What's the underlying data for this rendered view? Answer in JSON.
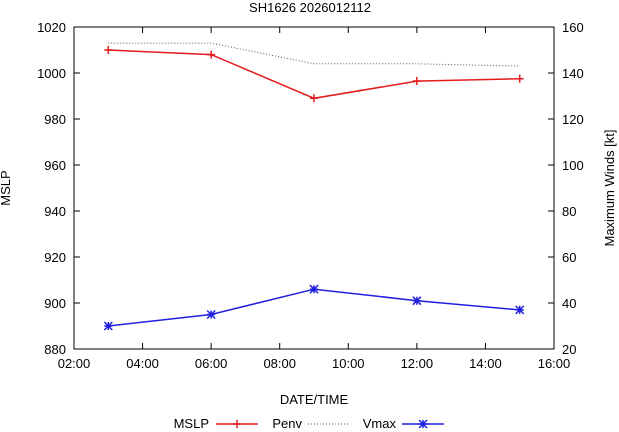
{
  "chart_data": {
    "type": "line",
    "title": "SH1626 2026012112",
    "xlabel": "DATE/TIME",
    "ylabel_left": "MSLP",
    "ylabel_right": "Maximum Winds [kt]",
    "x_ticks": [
      "02:00",
      "04:00",
      "06:00",
      "08:00",
      "10:00",
      "12:00",
      "14:00",
      "16:00"
    ],
    "x_range_hours": [
      2,
      16
    ],
    "y_left_ticks": [
      "880",
      "900",
      "920",
      "940",
      "960",
      "980",
      "1000",
      "1020"
    ],
    "y_left_range": [
      880,
      1020
    ],
    "y_right_ticks": [
      "20",
      "40",
      "60",
      "80",
      "100",
      "120",
      "140",
      "160"
    ],
    "y_right_range": [
      20,
      160
    ],
    "grid": false,
    "legend_position": "bottom",
    "series": [
      {
        "name": "MSLP",
        "axis": "left",
        "color": "#e41a1c",
        "style": "solid",
        "marker": "plus",
        "x": [
          "03:00",
          "06:00",
          "09:00",
          "12:00",
          "15:00"
        ],
        "values": [
          1010,
          1008,
          989,
          996.5,
          997.5
        ]
      },
      {
        "name": "Penv",
        "axis": "left",
        "color": "#555555",
        "style": "dotted",
        "marker": "none",
        "x": [
          "03:00",
          "06:00",
          "09:00",
          "12:00",
          "15:00"
        ],
        "values": [
          1013,
          1013,
          1004,
          1004,
          1003
        ]
      },
      {
        "name": "Vmax",
        "axis": "right",
        "color": "#1f1fe0",
        "style": "solid",
        "marker": "star",
        "x": [
          "03:00",
          "06:00",
          "09:00",
          "12:00",
          "15:00"
        ],
        "values": [
          30,
          35,
          46,
          41,
          37
        ]
      }
    ]
  }
}
